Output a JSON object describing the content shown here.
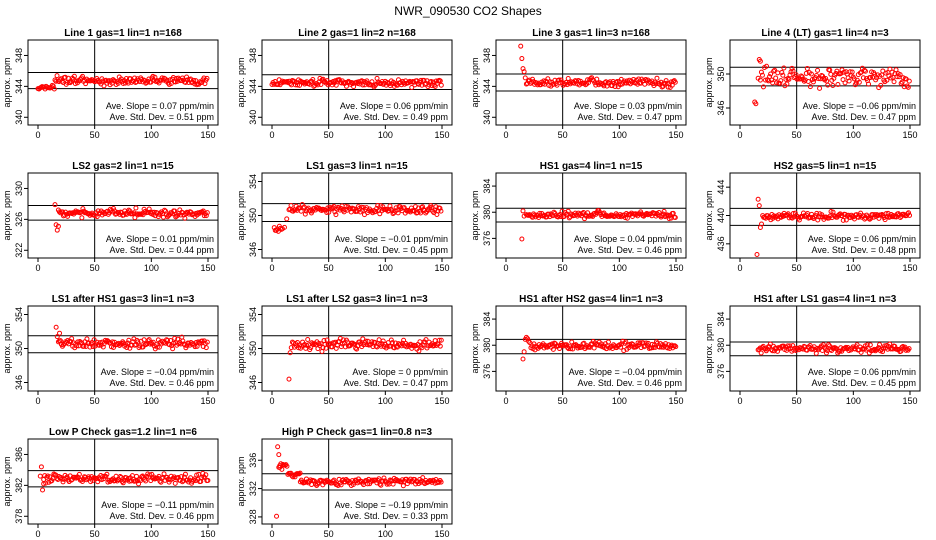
{
  "title": "NWR_090530  CO2 Shapes",
  "colors": {
    "points": "#ff0000",
    "axes": "#000000",
    "background": "#ffffff"
  },
  "chart_data": [
    {
      "type": "scatter",
      "title": "Line 1 gas=1 lin=1 n=168",
      "ylabel": "approx. ppm",
      "xlim": [
        0,
        150
      ],
      "ylim": [
        339,
        350
      ],
      "x_ticks": [
        0,
        50,
        100,
        150
      ],
      "y_ticks": [
        340,
        344,
        348
      ],
      "vline": 50,
      "hlines": [
        343.7,
        345.8
      ],
      "slope_text": "Ave. Slope =  0.07  ppm/min",
      "std_text": "Ave. Std. Dev. =  0.51  ppm",
      "points_series": [
        {
          "from": 0,
          "to": 15,
          "level": 343.9,
          "noise": 0.15
        },
        {
          "from": 15,
          "to": 150,
          "level": 344.7,
          "noise": 0.25
        }
      ],
      "outliers": []
    },
    {
      "type": "scatter",
      "title": "Line 2 gas=1 lin=2 n=168",
      "ylabel": "approx. ppm",
      "xlim": [
        0,
        150
      ],
      "ylim": [
        339,
        350
      ],
      "x_ticks": [
        0,
        50,
        100,
        150
      ],
      "y_ticks": [
        340,
        344,
        348
      ],
      "vline": 50,
      "hlines": [
        343.6,
        345.5
      ],
      "slope_text": "Ave. Slope =  0.06  ppm/min",
      "std_text": "Ave. Std. Dev. =  0.49  ppm",
      "points_series": [
        {
          "from": 0,
          "to": 150,
          "level": 344.5,
          "noise": 0.25
        }
      ],
      "outliers": []
    },
    {
      "type": "scatter",
      "title": "Line 3 gas=1 lin=3 n=168",
      "ylabel": "approx. ppm",
      "xlim": [
        0,
        150
      ],
      "ylim": [
        339,
        350
      ],
      "x_ticks": [
        0,
        50,
        100,
        150
      ],
      "y_ticks": [
        340,
        344,
        348
      ],
      "vline": 50,
      "hlines": [
        343.4,
        345.6
      ],
      "slope_text": "Ave. Slope =  0.03  ppm/min",
      "std_text": "Ave. Std. Dev. =  0.47  ppm",
      "points_series": [
        {
          "from": 18,
          "to": 150,
          "level": 344.5,
          "noise": 0.25
        }
      ],
      "outliers": [
        [
          13,
          349.2
        ],
        [
          14,
          347.6
        ],
        [
          15,
          346.3
        ],
        [
          16,
          345.9
        ],
        [
          17,
          345.1
        ]
      ]
    },
    {
      "type": "scatter",
      "title": "Line 4 (LT) gas=1 lin=4 n=3",
      "ylabel": "approx. ppm",
      "xlim": [
        0,
        150
      ],
      "ylim": [
        344,
        354
      ],
      "x_ticks": [
        0,
        50,
        100,
        150
      ],
      "y_ticks": [
        346,
        350
      ],
      "vline": 50,
      "hlines": [
        348.6,
        350.8
      ],
      "slope_text": "Ave. Slope = −0.06  ppm/min",
      "std_text": "Ave. Std. Dev. =  0.47  ppm",
      "points_series": [
        {
          "from": 18,
          "to": 150,
          "level": 349.6,
          "noise": 0.55
        }
      ],
      "outliers": [
        [
          13,
          346.7
        ],
        [
          14,
          346.5
        ],
        [
          17,
          351.7
        ],
        [
          18,
          351.5
        ],
        [
          16,
          349.5
        ]
      ]
    },
    {
      "type": "scatter",
      "title": "LS2 gas=2 lin=1 n=15",
      "ylabel": "approx. ppm",
      "xlim": [
        0,
        150
      ],
      "ylim": [
        321,
        332
      ],
      "x_ticks": [
        0,
        50,
        100,
        150
      ],
      "y_ticks": [
        322,
        326,
        330
      ],
      "vline": 50,
      "hlines": [
        325.9,
        327.8
      ],
      "slope_text": "Ave. Slope =  0.01  ppm/min",
      "std_text": "Ave. Std. Dev. =  0.44  ppm",
      "points_series": [
        {
          "from": 18,
          "to": 150,
          "level": 326.8,
          "noise": 0.25
        }
      ],
      "outliers": [
        [
          15,
          327.9
        ],
        [
          16,
          325.3
        ],
        [
          17,
          324.6
        ],
        [
          18,
          325.1
        ]
      ]
    },
    {
      "type": "scatter",
      "title": "LS1 gas=3 lin=1 n=15",
      "ylabel": "approx. ppm",
      "xlim": [
        0,
        150
      ],
      "ylim": [
        345,
        355
      ],
      "x_ticks": [
        0,
        50,
        100,
        150
      ],
      "y_ticks": [
        346,
        350,
        354
      ],
      "vline": 50,
      "hlines": [
        349.3,
        351.4
      ],
      "slope_text": "Ave. Slope = −0.01  ppm/min",
      "std_text": "Ave. Std. Dev. =  0.45  ppm",
      "points_series": [
        {
          "from": 15,
          "to": 150,
          "level": 350.7,
          "noise": 0.25
        },
        {
          "from": 2,
          "to": 10,
          "level": 348.4,
          "noise": 0.15
        }
      ],
      "outliers": [
        [
          11,
          348.6
        ],
        [
          13,
          349.6
        ]
      ]
    },
    {
      "type": "scatter",
      "title": "HS1 gas=4 lin=1 n=15",
      "ylabel": "approx. ppm",
      "xlim": [
        0,
        150
      ],
      "ylim": [
        373,
        386
      ],
      "x_ticks": [
        0,
        50,
        100,
        150
      ],
      "y_ticks": [
        376,
        380,
        384
      ],
      "vline": 50,
      "hlines": [
        378.5,
        380.6
      ],
      "slope_text": "Ave. Slope =  0.04  ppm/min",
      "std_text": "Ave. Std. Dev. =  0.46  ppm",
      "points_series": [
        {
          "from": 18,
          "to": 150,
          "level": 379.6,
          "noise": 0.25
        }
      ],
      "outliers": [
        [
          14,
          375.9
        ],
        [
          15,
          380.2
        ],
        [
          16,
          379.4
        ]
      ]
    },
    {
      "type": "scatter",
      "title": "HS2 gas=5 lin=1 n=15",
      "ylabel": "approx. ppm",
      "xlim": [
        0,
        150
      ],
      "ylim": [
        434,
        446
      ],
      "x_ticks": [
        0,
        50,
        100,
        150
      ],
      "y_ticks": [
        436,
        440,
        444
      ],
      "vline": 50,
      "hlines": [
        438.6,
        441.0
      ],
      "slope_text": "Ave. Slope =  0.06  ppm/min",
      "std_text": "Ave. Std. Dev. =  0.48  ppm",
      "points_series": [
        {
          "from": 20,
          "to": 150,
          "level": 439.9,
          "noise": 0.25
        }
      ],
      "outliers": [
        [
          15,
          434.5
        ],
        [
          16,
          442.3
        ],
        [
          17,
          441.4
        ],
        [
          18,
          438.3
        ],
        [
          19,
          438.8
        ]
      ]
    },
    {
      "type": "scatter",
      "title": "LS1 after HS1 gas=3 lin=1 n=3",
      "ylabel": "approx. ppm",
      "xlim": [
        0,
        150
      ],
      "ylim": [
        345,
        355
      ],
      "x_ticks": [
        0,
        50,
        100,
        150
      ],
      "y_ticks": [
        346,
        350,
        354
      ],
      "vline": 50,
      "hlines": [
        349.5,
        351.5
      ],
      "slope_text": "Ave. Slope = −0.04  ppm/min",
      "std_text": "Ave. Std. Dev. =  0.46  ppm",
      "points_series": [
        {
          "from": 18,
          "to": 150,
          "level": 350.6,
          "noise": 0.3
        }
      ],
      "outliers": [
        [
          16,
          352.5
        ],
        [
          17,
          351.4
        ],
        [
          19,
          351.8
        ]
      ]
    },
    {
      "type": "scatter",
      "title": "LS1 after LS2 gas=3 lin=1 n=3",
      "ylabel": "approx. ppm",
      "xlim": [
        0,
        150
      ],
      "ylim": [
        345,
        355
      ],
      "x_ticks": [
        0,
        50,
        100,
        150
      ],
      "y_ticks": [
        346,
        350,
        354
      ],
      "vline": 50,
      "hlines": [
        349.4,
        351.5
      ],
      "slope_text": "Ave. Slope =  0  ppm/min",
      "std_text": "Ave. Std. Dev. =  0.47  ppm",
      "points_series": [
        {
          "from": 18,
          "to": 150,
          "level": 350.5,
          "noise": 0.3
        }
      ],
      "outliers": [
        [
          15,
          346.4
        ],
        [
          16,
          349.5
        ],
        [
          17,
          350.1
        ]
      ]
    },
    {
      "type": "scatter",
      "title": "HS1 after HS2 gas=4 lin=1 n=3",
      "ylabel": "approx. ppm",
      "xlim": [
        0,
        150
      ],
      "ylim": [
        373,
        386
      ],
      "x_ticks": [
        0,
        50,
        100,
        150
      ],
      "y_ticks": [
        376,
        380,
        384
      ],
      "vline": 50,
      "hlines": [
        378.7,
        380.9
      ],
      "slope_text": "Ave. Slope = −0.04  ppm/min",
      "std_text": "Ave. Std. Dev. =  0.46  ppm",
      "points_series": [
        {
          "from": 22,
          "to": 150,
          "level": 379.9,
          "noise": 0.3
        }
      ],
      "outliers": [
        [
          15,
          377.9
        ],
        [
          16,
          379.0
        ],
        [
          17,
          380.9
        ],
        [
          18,
          381.2
        ],
        [
          19,
          381.0
        ],
        [
          20,
          380.6
        ],
        [
          21,
          380.4
        ]
      ]
    },
    {
      "type": "scatter",
      "title": "HS1 after LS1 gas=4 lin=1 n=3",
      "ylabel": "approx. ppm",
      "xlim": [
        0,
        150
      ],
      "ylim": [
        373,
        386
      ],
      "x_ticks": [
        0,
        50,
        100,
        150
      ],
      "y_ticks": [
        376,
        380,
        384
      ],
      "vline": 50,
      "hlines": [
        378.4,
        380.5
      ],
      "slope_text": "Ave. Slope =  0.06  ppm/min",
      "std_text": "Ave. Std. Dev. =  0.45  ppm",
      "points_series": [
        {
          "from": 16,
          "to": 150,
          "level": 379.5,
          "noise": 0.3
        }
      ],
      "outliers": []
    },
    {
      "type": "scatter",
      "title": "Low P Check gas=1.2 lin=1 n=6",
      "ylabel": "approx. ppm",
      "xlim": [
        0,
        150
      ],
      "ylim": [
        377,
        388
      ],
      "x_ticks": [
        0,
        50,
        100,
        150
      ],
      "y_ticks": [
        378,
        382,
        386
      ],
      "vline": 50,
      "hlines": [
        381.8,
        383.9
      ],
      "slope_text": "Ave. Slope = −0.11  ppm/min",
      "std_text": "Ave. Std. Dev. =  0.46  ppm",
      "points_series": [
        {
          "from": 5,
          "to": 150,
          "level": 382.9,
          "noise": 0.3
        }
      ],
      "outliers": [
        [
          2,
          383.2
        ],
        [
          3,
          384.4
        ],
        [
          4,
          381.4
        ],
        [
          5,
          382.2
        ]
      ]
    },
    {
      "type": "scatter",
      "title": "High P Check gas=1 lin=0.8 n=3",
      "ylabel": "approx. ppm",
      "xlim": [
        0,
        150
      ],
      "ylim": [
        327,
        339
      ],
      "x_ticks": [
        0,
        50,
        100,
        150
      ],
      "y_ticks": [
        328,
        332,
        336
      ],
      "vline": 50,
      "hlines": [
        331.8,
        334.1
      ],
      "slope_text": "Ave. Slope = −0.19  ppm/min",
      "std_text": "Ave. Std. Dev. =  0.33  ppm",
      "points_series": [
        {
          "from": 25,
          "to": 150,
          "level": 333.0,
          "noise": 0.25
        },
        {
          "from": 14,
          "to": 25,
          "level": 334.2,
          "noise": 0.25
        },
        {
          "from": 6,
          "to": 14,
          "level": 335.2,
          "noise": 0.3
        }
      ],
      "outliers": [
        [
          4,
          328.1
        ],
        [
          5,
          337.9
        ],
        [
          6,
          336.8
        ],
        [
          7,
          335.0
        ]
      ]
    }
  ]
}
